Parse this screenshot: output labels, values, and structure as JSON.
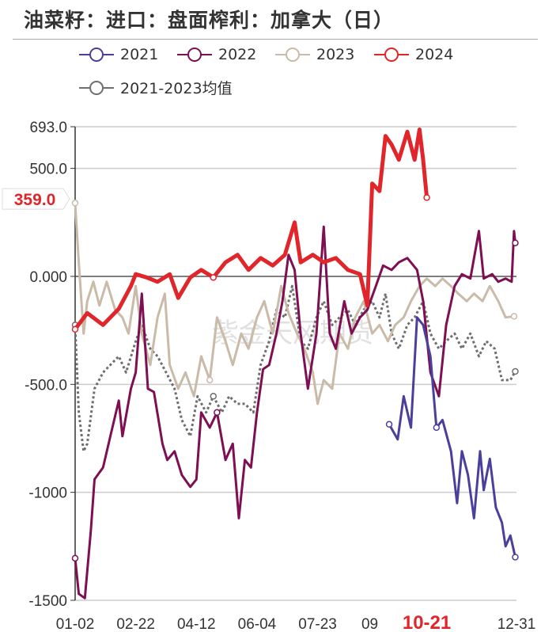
{
  "title": "油菜籽：进口：盘面榨利：加拿大（日）",
  "watermark": "紫金天风期货",
  "chart_data": {
    "type": "line",
    "title": "油菜籽：进口：盘面榨利：加拿大（日）",
    "xlabel": "",
    "ylabel": "",
    "x_unit": "day of year",
    "ylim": [
      -1500,
      693
    ],
    "yticks": [
      {
        "v": 693,
        "label": "693.0"
      },
      {
        "v": 500,
        "label": "500.0"
      },
      {
        "v": 0,
        "label": "0.000"
      },
      {
        "v": -500,
        "label": "-500.0"
      },
      {
        "v": -1000,
        "label": "-1000"
      },
      {
        "v": -1500,
        "label": "-1500"
      }
    ],
    "xticks": [
      {
        "d": 0,
        "label": "01-02"
      },
      {
        "d": 50,
        "label": "02-22"
      },
      {
        "d": 100,
        "label": "04-12"
      },
      {
        "d": 150,
        "label": "06-04"
      },
      {
        "d": 200,
        "label": "07-23"
      },
      {
        "d": 243,
        "label": "09"
      },
      {
        "d": 290,
        "label": "10-21",
        "highlight": true
      },
      {
        "d": 364,
        "label": "12-31"
      }
    ],
    "current_value_label": "359.0",
    "current_value": 359,
    "grid": true,
    "legend_position": "top",
    "series": [
      {
        "name": "2021",
        "color": "#4b3f9c",
        "dashed": false,
        "points": [
          [
            259,
            -685
          ],
          [
            266,
            -755
          ],
          [
            271,
            -555
          ],
          [
            277,
            -700
          ],
          [
            282,
            -190
          ],
          [
            287,
            -225
          ],
          [
            293,
            -370
          ],
          [
            298,
            -700
          ],
          [
            303,
            -665
          ],
          [
            310,
            -810
          ],
          [
            315,
            -1050
          ],
          [
            319,
            -810
          ],
          [
            324,
            -920
          ],
          [
            329,
            -1120
          ],
          [
            334,
            -810
          ],
          [
            337,
            -990
          ],
          [
            342,
            -845
          ],
          [
            347,
            -1070
          ],
          [
            352,
            -1140
          ],
          [
            355,
            -1250
          ],
          [
            359,
            -1200
          ],
          [
            363,
            -1300
          ]
        ]
      },
      {
        "name": "2022",
        "color": "#7d0f52",
        "dashed": false,
        "points": [
          [
            0,
            -1305
          ],
          [
            3,
            -1470
          ],
          [
            8,
            -1490
          ],
          [
            13,
            -1175
          ],
          [
            16,
            -940
          ],
          [
            23,
            -885
          ],
          [
            29,
            -740
          ],
          [
            36,
            -575
          ],
          [
            39,
            -740
          ],
          [
            46,
            -520
          ],
          [
            50,
            -445
          ],
          [
            55,
            -80
          ],
          [
            60,
            -520
          ],
          [
            65,
            -535
          ],
          [
            72,
            -775
          ],
          [
            76,
            -850
          ],
          [
            82,
            -810
          ],
          [
            88,
            -920
          ],
          [
            95,
            -975
          ],
          [
            100,
            -940
          ],
          [
            104,
            -630
          ],
          [
            111,
            -700
          ],
          [
            117,
            -630
          ],
          [
            124,
            -850
          ],
          [
            130,
            -775
          ],
          [
            135,
            -1120
          ],
          [
            140,
            -850
          ],
          [
            145,
            -885
          ],
          [
            150,
            -630
          ],
          [
            155,
            -430
          ],
          [
            160,
            -410
          ],
          [
            166,
            -265
          ],
          [
            171,
            -115
          ],
          [
            176,
            100
          ],
          [
            181,
            30
          ],
          [
            186,
            -265
          ],
          [
            192,
            -520
          ],
          [
            199,
            -265
          ],
          [
            205,
            230
          ],
          [
            210,
            -265
          ],
          [
            215,
            -335
          ],
          [
            222,
            -115
          ],
          [
            228,
            -265
          ],
          [
            235,
            -190
          ],
          [
            241,
            -155
          ],
          [
            248,
            -45
          ],
          [
            254,
            50
          ],
          [
            261,
            30
          ],
          [
            267,
            65
          ],
          [
            274,
            85
          ],
          [
            282,
            30
          ],
          [
            287,
            -115
          ],
          [
            293,
            -445
          ],
          [
            300,
            -555
          ],
          [
            306,
            -225
          ],
          [
            313,
            -45
          ],
          [
            319,
            10
          ],
          [
            326,
            -10
          ],
          [
            333,
            210
          ],
          [
            337,
            -10
          ],
          [
            344,
            10
          ],
          [
            349,
            -25
          ],
          [
            355,
            -10
          ],
          [
            360,
            -25
          ],
          [
            362,
            210
          ],
          [
            363,
            155
          ]
        ]
      },
      {
        "name": "2023",
        "color": "#c9bba8",
        "dashed": false,
        "points": [
          [
            0,
            340
          ],
          [
            3,
            65
          ],
          [
            7,
            -265
          ],
          [
            10,
            -115
          ],
          [
            15,
            -25
          ],
          [
            20,
            -135
          ],
          [
            26,
            -25
          ],
          [
            33,
            -155
          ],
          [
            39,
            -190
          ],
          [
            44,
            -265
          ],
          [
            50,
            -45
          ],
          [
            55,
            -265
          ],
          [
            62,
            -410
          ],
          [
            68,
            -190
          ],
          [
            74,
            -80
          ],
          [
            78,
            -410
          ],
          [
            85,
            -520
          ],
          [
            91,
            -445
          ],
          [
            98,
            -555
          ],
          [
            104,
            -370
          ],
          [
            111,
            -480
          ],
          [
            117,
            -190
          ],
          [
            124,
            -300
          ],
          [
            130,
            -410
          ],
          [
            137,
            -265
          ],
          [
            143,
            -335
          ],
          [
            150,
            -190
          ],
          [
            156,
            -115
          ],
          [
            163,
            -265
          ],
          [
            170,
            -45
          ],
          [
            176,
            -170
          ],
          [
            183,
            -265
          ],
          [
            189,
            -335
          ],
          [
            196,
            -445
          ],
          [
            200,
            -590
          ],
          [
            205,
            -480
          ],
          [
            212,
            -520
          ],
          [
            218,
            -265
          ],
          [
            225,
            -335
          ],
          [
            231,
            -190
          ],
          [
            238,
            -115
          ],
          [
            245,
            -265
          ],
          [
            251,
            -225
          ],
          [
            258,
            -300
          ],
          [
            264,
            -225
          ],
          [
            271,
            -190
          ],
          [
            277,
            -115
          ],
          [
            284,
            -45
          ],
          [
            290,
            -10
          ],
          [
            297,
            -45
          ],
          [
            303,
            -10
          ],
          [
            310,
            -45
          ],
          [
            316,
            -80
          ],
          [
            323,
            -115
          ],
          [
            329,
            -80
          ],
          [
            336,
            -115
          ],
          [
            342,
            -45
          ],
          [
            349,
            -115
          ],
          [
            355,
            -190
          ],
          [
            362,
            -185
          ]
        ]
      },
      {
        "name": "2024",
        "color": "#e0262a",
        "dashed": false,
        "points": [
          [
            0,
            -245
          ],
          [
            10,
            -170
          ],
          [
            23,
            -225
          ],
          [
            36,
            -150
          ],
          [
            46,
            -45
          ],
          [
            50,
            10
          ],
          [
            59,
            -5
          ],
          [
            68,
            -25
          ],
          [
            78,
            10
          ],
          [
            85,
            -100
          ],
          [
            95,
            -5
          ],
          [
            104,
            30
          ],
          [
            114,
            -5
          ],
          [
            124,
            65
          ],
          [
            134,
            100
          ],
          [
            143,
            30
          ],
          [
            153,
            85
          ],
          [
            163,
            50
          ],
          [
            173,
            100
          ],
          [
            181,
            250
          ],
          [
            186,
            65
          ],
          [
            196,
            100
          ],
          [
            205,
            65
          ],
          [
            215,
            85
          ],
          [
            225,
            30
          ],
          [
            235,
            10
          ],
          [
            241,
            -135
          ],
          [
            245,
            430
          ],
          [
            251,
            395
          ],
          [
            256,
            650
          ],
          [
            261,
            610
          ],
          [
            267,
            540
          ],
          [
            274,
            670
          ],
          [
            280,
            540
          ],
          [
            284,
            680
          ],
          [
            287,
            540
          ],
          [
            290,
            365
          ]
        ]
      },
      {
        "name": "2021-2023均值",
        "color": "#6e6e6e",
        "dashed": true,
        "points": [
          [
            0,
            -225
          ],
          [
            3,
            -630
          ],
          [
            7,
            -810
          ],
          [
            10,
            -775
          ],
          [
            16,
            -520
          ],
          [
            23,
            -445
          ],
          [
            29,
            -410
          ],
          [
            36,
            -370
          ],
          [
            42,
            -445
          ],
          [
            50,
            -300
          ],
          [
            55,
            -225
          ],
          [
            62,
            -335
          ],
          [
            68,
            -370
          ],
          [
            75,
            -445
          ],
          [
            82,
            -520
          ],
          [
            88,
            -665
          ],
          [
            95,
            -740
          ],
          [
            101,
            -555
          ],
          [
            108,
            -630
          ],
          [
            114,
            -555
          ],
          [
            121,
            -630
          ],
          [
            127,
            -555
          ],
          [
            134,
            -590
          ],
          [
            140,
            -590
          ],
          [
            147,
            -630
          ],
          [
            153,
            -410
          ],
          [
            160,
            -300
          ],
          [
            166,
            -155
          ],
          [
            173,
            -190
          ],
          [
            179,
            -45
          ],
          [
            186,
            -300
          ],
          [
            192,
            -335
          ],
          [
            199,
            -190
          ],
          [
            205,
            -115
          ],
          [
            212,
            -225
          ],
          [
            218,
            -190
          ],
          [
            225,
            -155
          ],
          [
            231,
            -225
          ],
          [
            238,
            -155
          ],
          [
            245,
            -115
          ],
          [
            251,
            -190
          ],
          [
            256,
            -80
          ],
          [
            261,
            -265
          ],
          [
            267,
            -335
          ],
          [
            274,
            -225
          ],
          [
            280,
            -190
          ],
          [
            287,
            -115
          ],
          [
            293,
            -265
          ],
          [
            300,
            -335
          ],
          [
            306,
            -300
          ],
          [
            313,
            -265
          ],
          [
            319,
            -335
          ],
          [
            326,
            -265
          ],
          [
            333,
            -370
          ],
          [
            339,
            -300
          ],
          [
            346,
            -335
          ],
          [
            352,
            -480
          ],
          [
            359,
            -480
          ],
          [
            363,
            -440
          ]
        ]
      }
    ]
  }
}
